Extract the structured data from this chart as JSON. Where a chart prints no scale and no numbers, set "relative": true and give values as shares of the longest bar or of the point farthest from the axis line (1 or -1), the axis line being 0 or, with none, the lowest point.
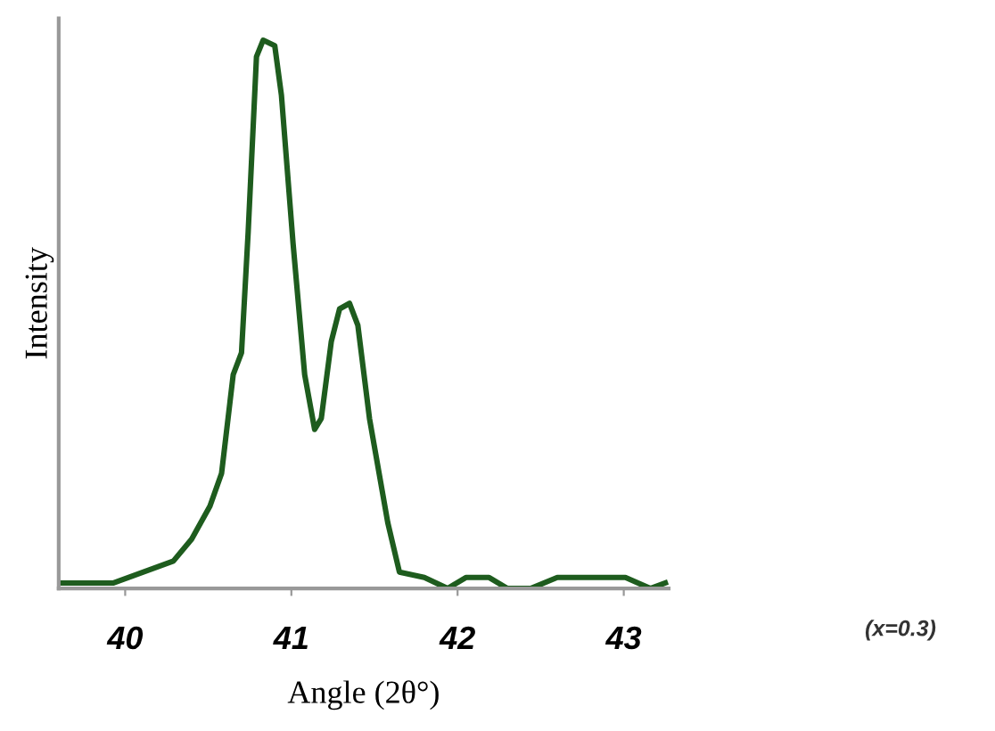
{
  "chart_data": {
    "type": "line",
    "xlabel": "Angle (2θ°)",
    "ylabel": "Intensity",
    "relative": true,
    "color": "#1e5c1e",
    "marker": "none",
    "line_style": "solid",
    "grid": false,
    "legend": false,
    "x": [
      39.6,
      39.75,
      39.93,
      40.11,
      40.29,
      40.4,
      40.51,
      40.58,
      40.65,
      40.7,
      40.74,
      40.79,
      40.83,
      40.9,
      40.94,
      41.01,
      41.08,
      41.14,
      41.18,
      41.24,
      41.29,
      41.35,
      41.4,
      41.47,
      41.58,
      41.65,
      41.8,
      41.94,
      42.05,
      42.19,
      42.3,
      42.44,
      42.6,
      42.8,
      43.01,
      43.16,
      43.25
    ],
    "values": [
      0.01,
      0.01,
      0.01,
      0.03,
      0.05,
      0.09,
      0.15,
      0.21,
      0.39,
      0.43,
      0.65,
      0.97,
      1.0,
      0.99,
      0.9,
      0.63,
      0.39,
      0.29,
      0.31,
      0.45,
      0.51,
      0.52,
      0.48,
      0.31,
      0.12,
      0.03,
      0.02,
      0.0,
      0.02,
      0.02,
      0.0,
      0.0,
      0.02,
      0.02,
      0.02,
      0.0,
      0.01
    ],
    "xlim": [
      39.6,
      43.27
    ],
    "xticks": [
      40,
      41,
      42,
      43
    ],
    "annotations": [
      "(x=0.3)"
    ]
  }
}
